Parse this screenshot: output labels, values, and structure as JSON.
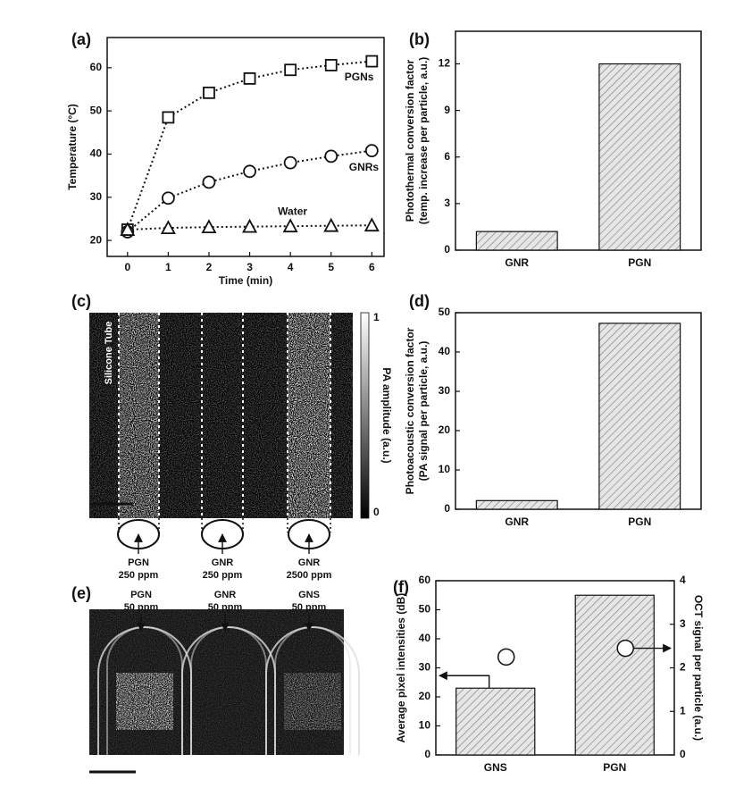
{
  "chart_data": [
    {
      "type": "line",
      "panel": "(a)",
      "xlabel": "Time (min)",
      "ylabel": "Temperature (°C)",
      "xlim": [
        -0.5,
        6.3
      ],
      "xticks": [
        0,
        1,
        2,
        3,
        4,
        5,
        6
      ],
      "ylim": [
        16.3,
        67
      ],
      "yticks": [
        20,
        30,
        40,
        50,
        60
      ],
      "x": [
        0,
        1,
        2,
        3,
        4,
        5,
        6
      ],
      "series": [
        {
          "name": "PGNs",
          "marker": "square",
          "color": "#111111",
          "values": [
            22.5,
            48.5,
            54.2,
            57.5,
            59.5,
            60.6,
            61.5
          ]
        },
        {
          "name": "GNRs",
          "marker": "circle",
          "color": "#111111",
          "values": [
            22,
            29.8,
            33.5,
            36,
            38,
            39.5,
            40.8
          ]
        },
        {
          "name": "Water",
          "marker": "triangle",
          "color": "#111111",
          "values": [
            22.5,
            22.9,
            23.1,
            23.2,
            23.3,
            23.4,
            23.5
          ]
        }
      ]
    },
    {
      "type": "bar",
      "panel": "(b)",
      "ylabel": [
        "Photothermal conversion factor",
        "(temp. increase per particle, a.u.)"
      ],
      "categories": [
        "GNR",
        "PGN"
      ],
      "ylim": [
        0,
        14.1
      ],
      "yticks": [
        0,
        3,
        6,
        9,
        12
      ],
      "series": [
        {
          "color": "#d9d9d9",
          "values": [
            1.2,
            12.0
          ]
        }
      ]
    },
    {
      "type": "bar",
      "panel": "(d)",
      "ylabel": [
        "Photoacoustic conversion factor",
        "(PA signal per particle, a.u.)"
      ],
      "categories": [
        "GNR",
        "PGN"
      ],
      "ylim": [
        0,
        50
      ],
      "yticks": [
        0,
        10,
        20,
        30,
        40,
        50
      ],
      "series": [
        {
          "color": "#d9d9d9",
          "values": [
            2.2,
            47.3
          ]
        }
      ]
    },
    {
      "type": "bar",
      "panel": "(f)",
      "ylabel": "Average pixel intensities (dB)",
      "y2label": "OCT signal per particle (a.u.)",
      "categories": [
        "GNS",
        "PGN"
      ],
      "ylim": [
        0,
        60
      ],
      "yticks": [
        0,
        10,
        20,
        30,
        40,
        50,
        60
      ],
      "y2lim": [
        0,
        4
      ],
      "y2ticks": [
        0,
        1,
        2,
        3,
        4
      ],
      "series": [
        {
          "color": "#d9d9d9",
          "values": [
            23,
            55
          ]
        },
        {
          "color": "#ffffff",
          "axis": "y2",
          "marker": "circle",
          "values": [
            2.25,
            2.45
          ]
        }
      ]
    }
  ],
  "image_panels": [
    {
      "panel": "(c)",
      "annotation": "Silicone Tube",
      "colorbar_label": "PA amplitude (a.u.)",
      "colorbar_ticks": [
        1,
        0
      ],
      "samples": [
        {
          "name": "PGN",
          "concentration": "250 ppm"
        },
        {
          "name": "GNR",
          "concentration": "250 ppm"
        },
        {
          "name": "GNR",
          "concentration": "2500 ppm"
        }
      ]
    },
    {
      "panel": "(e)",
      "samples": [
        {
          "name": "PGN",
          "concentration": "50 ppm"
        },
        {
          "name": "GNR",
          "concentration": "50 ppm"
        },
        {
          "name": "GNS",
          "concentration": "50 ppm"
        }
      ]
    }
  ]
}
